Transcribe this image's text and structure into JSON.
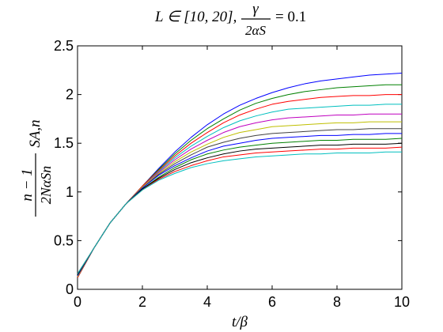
{
  "chart_data": {
    "type": "line",
    "title": "L ∈ [10, 20],  γ / 2α_S = 0.1",
    "title_parts": {
      "lhs": "L ∈ [10, 20],",
      "frac_num": "γ",
      "frac_den": "2αS",
      "rhs": "= 0.1"
    },
    "xlabel": "t/β",
    "ylabel": "n − 1 / 2Nα_S n · S_A,n",
    "ylabel_parts": {
      "num": "n − 1",
      "den": "2NαSn",
      "tail": "SA,n"
    },
    "xlim": [
      0,
      10
    ],
    "ylim": [
      0,
      2.5
    ],
    "xticks": [
      "0",
      "2",
      "4",
      "6",
      "8",
      "10"
    ],
    "yticks": [
      "0",
      "0.5",
      "1",
      "1.5",
      "2",
      "2.5"
    ],
    "grid": false,
    "x": [
      0,
      0.5,
      1,
      1.5,
      2,
      2.5,
      3,
      3.5,
      4,
      4.5,
      5,
      5.5,
      6,
      6.5,
      7,
      7.5,
      8,
      8.5,
      9,
      9.5,
      10
    ],
    "series": [
      {
        "color": "#0000ff",
        "values": [
          0.12,
          0.42,
          0.68,
          0.88,
          1.06,
          1.24,
          1.41,
          1.56,
          1.69,
          1.8,
          1.89,
          1.96,
          2.02,
          2.07,
          2.11,
          2.14,
          2.16,
          2.18,
          2.2,
          2.21,
          2.22
        ]
      },
      {
        "color": "#008000",
        "values": [
          0.12,
          0.42,
          0.68,
          0.88,
          1.06,
          1.23,
          1.39,
          1.53,
          1.65,
          1.75,
          1.84,
          1.91,
          1.96,
          2.0,
          2.03,
          2.05,
          2.07,
          2.08,
          2.09,
          2.1,
          2.1
        ]
      },
      {
        "color": "#ff0000",
        "values": [
          0.12,
          0.42,
          0.68,
          0.88,
          1.06,
          1.22,
          1.37,
          1.5,
          1.61,
          1.71,
          1.79,
          1.85,
          1.9,
          1.93,
          1.95,
          1.97,
          1.98,
          1.99,
          1.99,
          2.0,
          2.0
        ]
      },
      {
        "color": "#00bfbf",
        "values": [
          0.13,
          0.42,
          0.68,
          0.88,
          1.05,
          1.21,
          1.35,
          1.47,
          1.57,
          1.66,
          1.73,
          1.78,
          1.82,
          1.85,
          1.86,
          1.87,
          1.88,
          1.89,
          1.89,
          1.9,
          1.9
        ]
      },
      {
        "color": "#bf00bf",
        "values": [
          0.13,
          0.42,
          0.68,
          0.88,
          1.05,
          1.2,
          1.33,
          1.44,
          1.53,
          1.61,
          1.67,
          1.71,
          1.74,
          1.76,
          1.77,
          1.78,
          1.79,
          1.79,
          1.8,
          1.8,
          1.8
        ]
      },
      {
        "color": "#bfbf00",
        "values": [
          0.13,
          0.42,
          0.68,
          0.88,
          1.05,
          1.19,
          1.31,
          1.41,
          1.49,
          1.56,
          1.61,
          1.64,
          1.67,
          1.68,
          1.69,
          1.7,
          1.71,
          1.71,
          1.72,
          1.72,
          1.72
        ]
      },
      {
        "color": "#404040",
        "values": [
          0.14,
          0.42,
          0.68,
          0.88,
          1.04,
          1.18,
          1.29,
          1.38,
          1.46,
          1.51,
          1.55,
          1.58,
          1.6,
          1.61,
          1.62,
          1.63,
          1.64,
          1.64,
          1.65,
          1.65,
          1.65
        ]
      },
      {
        "color": "#0000ff",
        "values": [
          0.14,
          0.42,
          0.68,
          0.88,
          1.04,
          1.17,
          1.27,
          1.35,
          1.42,
          1.47,
          1.5,
          1.53,
          1.55,
          1.56,
          1.57,
          1.58,
          1.58,
          1.59,
          1.59,
          1.6,
          1.6
        ]
      },
      {
        "color": "#008000",
        "values": [
          0.15,
          0.42,
          0.68,
          0.88,
          1.03,
          1.15,
          1.25,
          1.33,
          1.39,
          1.43,
          1.46,
          1.48,
          1.5,
          1.51,
          1.52,
          1.53,
          1.53,
          1.54,
          1.54,
          1.54,
          1.55
        ]
      },
      {
        "color": "#000000",
        "values": [
          0.15,
          0.42,
          0.68,
          0.88,
          1.03,
          1.14,
          1.23,
          1.3,
          1.35,
          1.39,
          1.42,
          1.44,
          1.45,
          1.46,
          1.47,
          1.48,
          1.48,
          1.49,
          1.49,
          1.49,
          1.5
        ]
      },
      {
        "color": "#ff0000",
        "values": [
          0.16,
          0.42,
          0.68,
          0.88,
          1.02,
          1.13,
          1.21,
          1.27,
          1.32,
          1.36,
          1.38,
          1.4,
          1.41,
          1.42,
          1.43,
          1.44,
          1.44,
          1.45,
          1.45,
          1.45,
          1.46
        ]
      },
      {
        "color": "#00bfbf",
        "values": [
          0.16,
          0.42,
          0.68,
          0.88,
          1.02,
          1.12,
          1.19,
          1.25,
          1.29,
          1.32,
          1.34,
          1.36,
          1.37,
          1.38,
          1.39,
          1.39,
          1.4,
          1.4,
          1.4,
          1.41,
          1.41
        ]
      }
    ]
  }
}
